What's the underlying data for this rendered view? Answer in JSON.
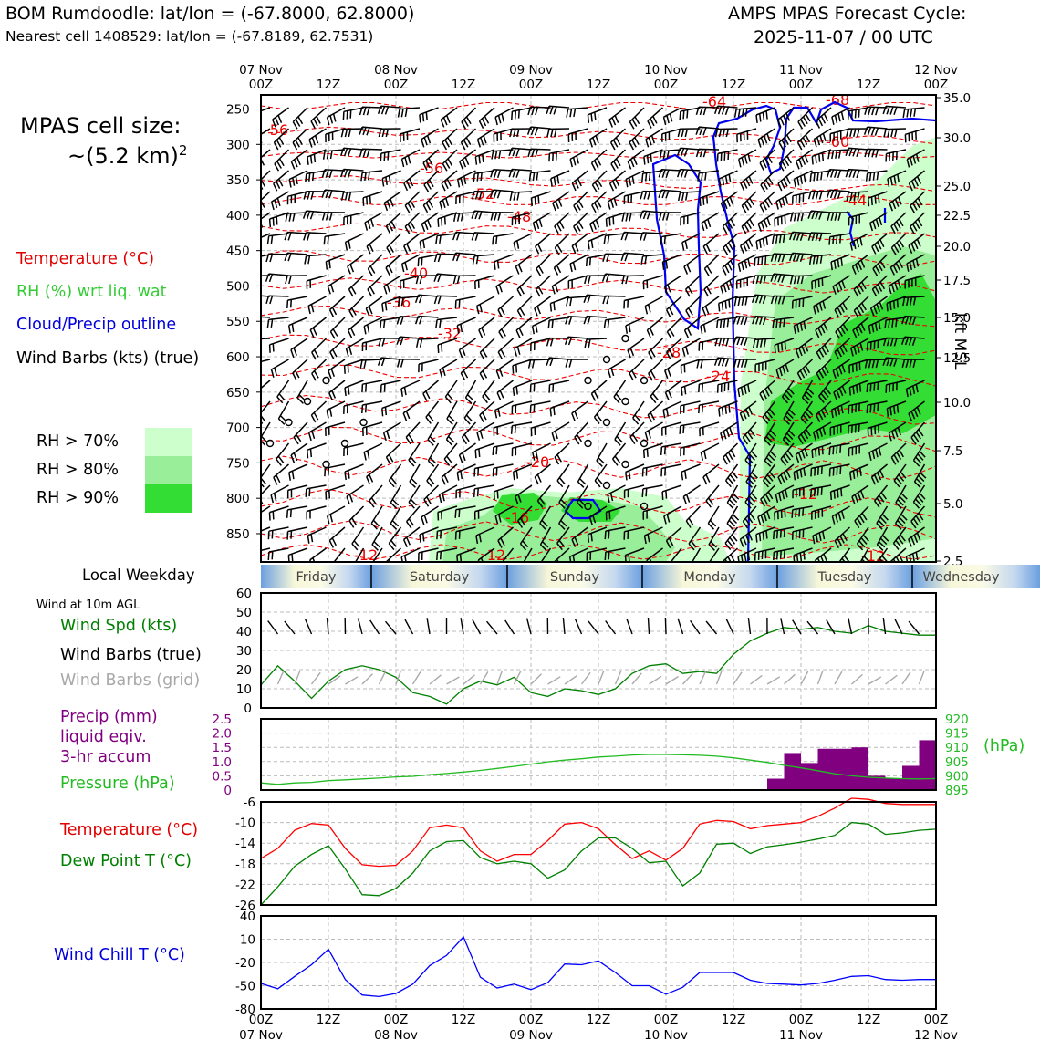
{
  "header": {
    "station": "BOM Rumdoodle: lat/lon = (-67.8000, 62.8000)",
    "nearest": "Nearest cell 1408529: lat/lon = (-67.8189, 62.7531)",
    "cycle_title": "AMPS MPAS Forecast Cycle:",
    "cycle_date": "2025-11-07 / 00 UTC"
  },
  "legend": {
    "cell_size_label": "MPAS cell size:",
    "cell_size_value": "~(5.2 km)",
    "cell_size_exp": "2",
    "temperature": "Temperature (°C)",
    "rh": "RH (%) wrt liq. wat",
    "cloud": "Cloud/Precip outline",
    "barbs": "Wind Barbs (kts) (true)",
    "rh70": "RH > 70%",
    "rh80": "RH > 80%",
    "rh90": "RH > 90%",
    "rh_colors": [
      "#ccffcc",
      "#99ee99",
      "#33dd33"
    ]
  },
  "weekday": {
    "label": "Local Weekday",
    "days": [
      "Friday",
      "Saturday",
      "Sunday",
      "Monday",
      "Tuesday",
      "Wednesday"
    ]
  },
  "panel_labels": {
    "wind_title": "Wind at 10m AGL",
    "wind_spd": "Wind Spd (kts)",
    "wind_barbs_true": "Wind Barbs (true)",
    "wind_barbs_grid": "Wind Barbs (grid)",
    "precip_1": "Precip (mm)",
    "precip_2": "liquid eqiv.",
    "precip_3": "3-hr accum",
    "pressure": "Pressure (hPa)",
    "pressure_unit": "(hPa)",
    "temperature": "Temperature (°C)",
    "dewpoint": "Dew Point T (°C)",
    "windchill": "Wind Chill T (°C)",
    "kft": "kft MSL"
  },
  "time_axis": {
    "top_days": [
      "07 Nov",
      "08 Nov",
      "09 Nov",
      "10 Nov",
      "11 Nov",
      "12 Nov"
    ],
    "labels": [
      "00Z",
      "12Z",
      "00Z",
      "12Z",
      "00Z",
      "12Z",
      "00Z",
      "12Z",
      "00Z",
      "12Z",
      "00Z"
    ],
    "bottom_days": [
      "07 Nov",
      "08 Nov",
      "09 Nov",
      "10 Nov",
      "11 Nov",
      "12 Nov"
    ]
  },
  "chart_data": [
    {
      "type": "heatmap",
      "name": "time-height cross section",
      "x_range_hours": [
        0,
        120
      ],
      "y_axis_pressure_ticks": [
        "250",
        "300",
        "350",
        "400",
        "450",
        "500",
        "550",
        "600",
        "650",
        "700",
        "750",
        "800",
        "850"
      ],
      "y_axis_kft_ticks": [
        "35.0",
        "30.0",
        "25.0",
        "22.5",
        "20.0",
        "17.5",
        "15.0",
        "12.5",
        "10.0",
        "7.5",
        "5.0",
        "2.5"
      ],
      "temperature_contour_labels": [
        "-56",
        "-56",
        "-52",
        "-48",
        "-40",
        "-36",
        "-32",
        "-28",
        "-24",
        "-20",
        "-16",
        "-12",
        "-12",
        "-12",
        "-64",
        "-68",
        "-60",
        "-44",
        "-12"
      ]
    },
    {
      "type": "line",
      "name": "wind speed 10m",
      "ylim": [
        0,
        60
      ],
      "yticks": [
        "0",
        "10",
        "20",
        "30",
        "40",
        "50",
        "60"
      ],
      "x_hours": [
        0,
        3,
        6,
        9,
        12,
        15,
        18,
        21,
        24,
        27,
        30,
        33,
        36,
        39,
        42,
        45,
        48,
        51,
        54,
        57,
        60,
        63,
        66,
        69,
        72,
        75,
        78,
        81,
        84,
        87,
        90,
        93,
        96,
        99,
        102,
        105,
        108,
        111,
        114,
        117,
        120
      ],
      "values": [
        12,
        22,
        14,
        5,
        14,
        20,
        22,
        20,
        16,
        8,
        6,
        2,
        10,
        14,
        12,
        16,
        8,
        6,
        10,
        9,
        7,
        10,
        18,
        22,
        23,
        18,
        19,
        18,
        28,
        35,
        39,
        42,
        41,
        42,
        40,
        39,
        43,
        40,
        39,
        38,
        38
      ]
    },
    {
      "type": "bar",
      "name": "3-hr precip and surface pressure",
      "precip_ylim": [
        0,
        2.5
      ],
      "precip_yticks": [
        "0",
        "0.5",
        "1.0",
        "1.5",
        "2.0",
        "2.5"
      ],
      "precip_x_hours": [
        90,
        93,
        96,
        99,
        102,
        105,
        108,
        111,
        114,
        117
      ],
      "precip_values": [
        0.4,
        1.3,
        0.95,
        1.45,
        1.45,
        1.5,
        0.5,
        0.4,
        0.85,
        1.75
      ],
      "pressure_ylim": [
        895,
        920
      ],
      "pressure_yticks": [
        "895",
        "900",
        "905",
        "910",
        "915",
        "920"
      ],
      "pressure_x_hours": [
        0,
        3,
        6,
        9,
        12,
        15,
        18,
        21,
        24,
        27,
        30,
        33,
        36,
        39,
        42,
        45,
        48,
        51,
        54,
        57,
        60,
        63,
        66,
        69,
        72,
        75,
        78,
        81,
        84,
        87,
        90,
        93,
        96,
        99,
        102,
        105,
        108,
        111,
        114,
        117,
        120
      ],
      "pressure_values": [
        897.5,
        897,
        897.5,
        897.7,
        898.3,
        898.6,
        898.9,
        899.2,
        899.6,
        899.8,
        900.4,
        900.8,
        901.3,
        901.9,
        902.6,
        903.3,
        904.1,
        904.9,
        905.5,
        906,
        906.6,
        906.9,
        907.3,
        907.5,
        907.5,
        907.4,
        907.2,
        906.9,
        906.3,
        905.5,
        904.7,
        903.7,
        902.8,
        901.8,
        900.7,
        900,
        899.5,
        899.2,
        899,
        898.9,
        899
      ]
    },
    {
      "type": "line",
      "name": "temperature and dew point",
      "ylim": [
        -26,
        -6
      ],
      "yticks": [
        "-6",
        "-10",
        "-14",
        "-18",
        "-22",
        "-26"
      ],
      "x_hours": [
        0,
        3,
        6,
        9,
        12,
        15,
        18,
        21,
        24,
        27,
        30,
        33,
        36,
        39,
        42,
        45,
        48,
        51,
        54,
        57,
        60,
        63,
        66,
        69,
        72,
        75,
        78,
        81,
        84,
        87,
        90,
        93,
        96,
        99,
        102,
        105,
        108,
        111,
        114,
        117,
        120
      ],
      "series": [
        {
          "name": "Temperature (°C)",
          "color": "#ff0000",
          "values": [
            -17,
            -15,
            -11.5,
            -10.2,
            -10.5,
            -15,
            -18.2,
            -18.5,
            -18.3,
            -15.5,
            -11,
            -10.5,
            -11,
            -15.5,
            -17.5,
            -16.2,
            -16.2,
            -13.5,
            -10.3,
            -10,
            -11.2,
            -14.3,
            -17,
            -15.5,
            -17.3,
            -15,
            -10.3,
            -9.6,
            -9.8,
            -11.2,
            -10.6,
            -10.3,
            -10,
            -8.8,
            -7.2,
            -5.3,
            -5.5,
            -6.3,
            -6.5,
            -6.5,
            -6.5
          ]
        },
        {
          "name": "Dew Point T (°C)",
          "color": "#008000",
          "values": [
            -26,
            -22.5,
            -18.5,
            -16.2,
            -14.5,
            -19,
            -24,
            -24.2,
            -22.8,
            -19.8,
            -15.5,
            -13.7,
            -13.5,
            -16.8,
            -18,
            -17.5,
            -18,
            -20.8,
            -19.2,
            -15.5,
            -13,
            -13,
            -15,
            -17.8,
            -17.5,
            -22.3,
            -19.8,
            -14.2,
            -14,
            -16,
            -14.7,
            -14.3,
            -13.8,
            -13.2,
            -12.5,
            -10,
            -10.3,
            -12.3,
            -12,
            -11.5,
            -11.3
          ]
        }
      ]
    },
    {
      "type": "line",
      "name": "wind chill",
      "ylim": [
        -80,
        40
      ],
      "yticks": [
        "40",
        "10",
        "-20",
        "-50",
        "-80"
      ],
      "x_hours": [
        0,
        3,
        6,
        9,
        12,
        15,
        18,
        21,
        24,
        27,
        30,
        33,
        36,
        39,
        42,
        45,
        48,
        51,
        54,
        57,
        60,
        63,
        66,
        69,
        72,
        75,
        78,
        81,
        84,
        87,
        90,
        93,
        96,
        99,
        102,
        105,
        108,
        111,
        114,
        117,
        120
      ],
      "values": [
        -47,
        -54,
        -38,
        -23,
        -3,
        -42,
        -62,
        -64,
        -60,
        -48,
        -24,
        -11,
        13,
        -39,
        -53,
        -48,
        -55,
        -46,
        -22,
        -23,
        -18,
        -33,
        -50,
        -50,
        -61,
        -52,
        -33,
        -33,
        -33,
        -43,
        -47,
        -48,
        -49,
        -47,
        -43,
        -38,
        -37,
        -42,
        -43,
        -42,
        -42
      ],
      "color": "#0000ff"
    }
  ]
}
